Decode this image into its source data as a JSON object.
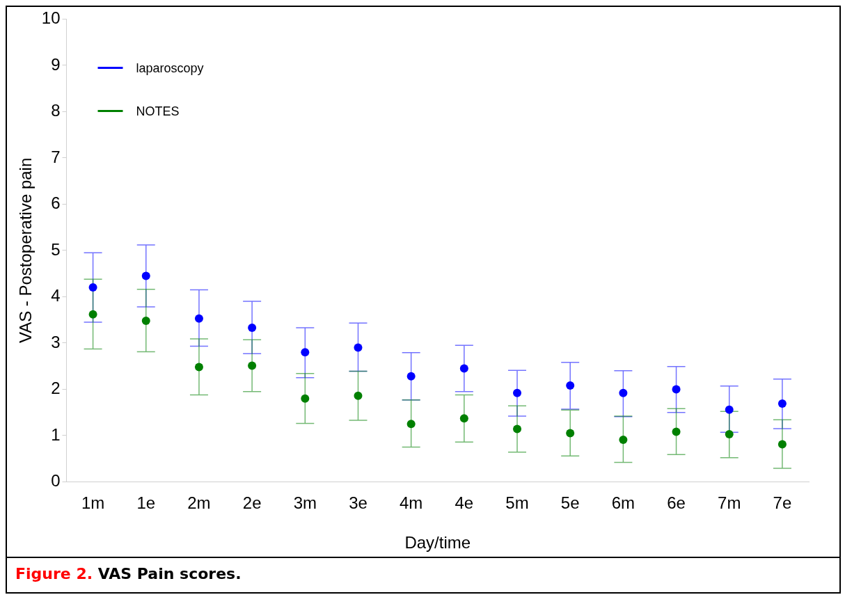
{
  "chart_data": {
    "type": "scatter",
    "xlabel": "Day/time",
    "ylabel": "VAS - Postoperative pain",
    "categories": [
      "1m",
      "1e",
      "2m",
      "2e",
      "3m",
      "3e",
      "4m",
      "4e",
      "5m",
      "5e",
      "6m",
      "6e",
      "7m",
      "7e"
    ],
    "series": [
      {
        "name": "laparoscopy",
        "color": "#0000ff",
        "values": [
          4.2,
          4.45,
          3.53,
          3.33,
          2.8,
          2.9,
          2.28,
          2.45,
          1.92,
          2.08,
          1.92,
          2.0,
          1.56,
          1.69
        ],
        "errors": [
          [
            3.45,
            4.95
          ],
          [
            3.78,
            5.12
          ],
          [
            2.93,
            4.15
          ],
          [
            2.77,
            3.9
          ],
          [
            2.25,
            3.33
          ],
          [
            2.39,
            3.43
          ],
          [
            1.77,
            2.79
          ],
          [
            1.95,
            2.95
          ],
          [
            1.42,
            2.41
          ],
          [
            1.57,
            2.58
          ],
          [
            1.41,
            2.4
          ],
          [
            1.5,
            2.49
          ],
          [
            1.07,
            2.07
          ],
          [
            1.15,
            2.22
          ]
        ]
      },
      {
        "name": "NOTES",
        "color": "#008000",
        "values": [
          3.62,
          3.48,
          2.48,
          2.51,
          1.8,
          1.86,
          1.25,
          1.37,
          1.14,
          1.05,
          0.91,
          1.08,
          1.03,
          0.81
        ],
        "errors": [
          [
            2.87,
            4.38
          ],
          [
            2.81,
            4.16
          ],
          [
            1.88,
            3.09
          ],
          [
            1.95,
            3.07
          ],
          [
            1.26,
            2.34
          ],
          [
            1.33,
            2.39
          ],
          [
            0.75,
            1.77
          ],
          [
            0.86,
            1.88
          ],
          [
            0.64,
            1.64
          ],
          [
            0.56,
            1.55
          ],
          [
            0.42,
            1.42
          ],
          [
            0.59,
            1.58
          ],
          [
            0.52,
            1.52
          ],
          [
            0.29,
            1.34
          ]
        ]
      }
    ],
    "ylim": [
      0,
      10
    ],
    "yticks": [
      0,
      1,
      2,
      3,
      4,
      5,
      6,
      7,
      8,
      9,
      10
    ],
    "grid": false,
    "legend": "top left",
    "marker": "circle",
    "annotations": [
      "Figure 2. VAS Pain scores."
    ]
  }
}
